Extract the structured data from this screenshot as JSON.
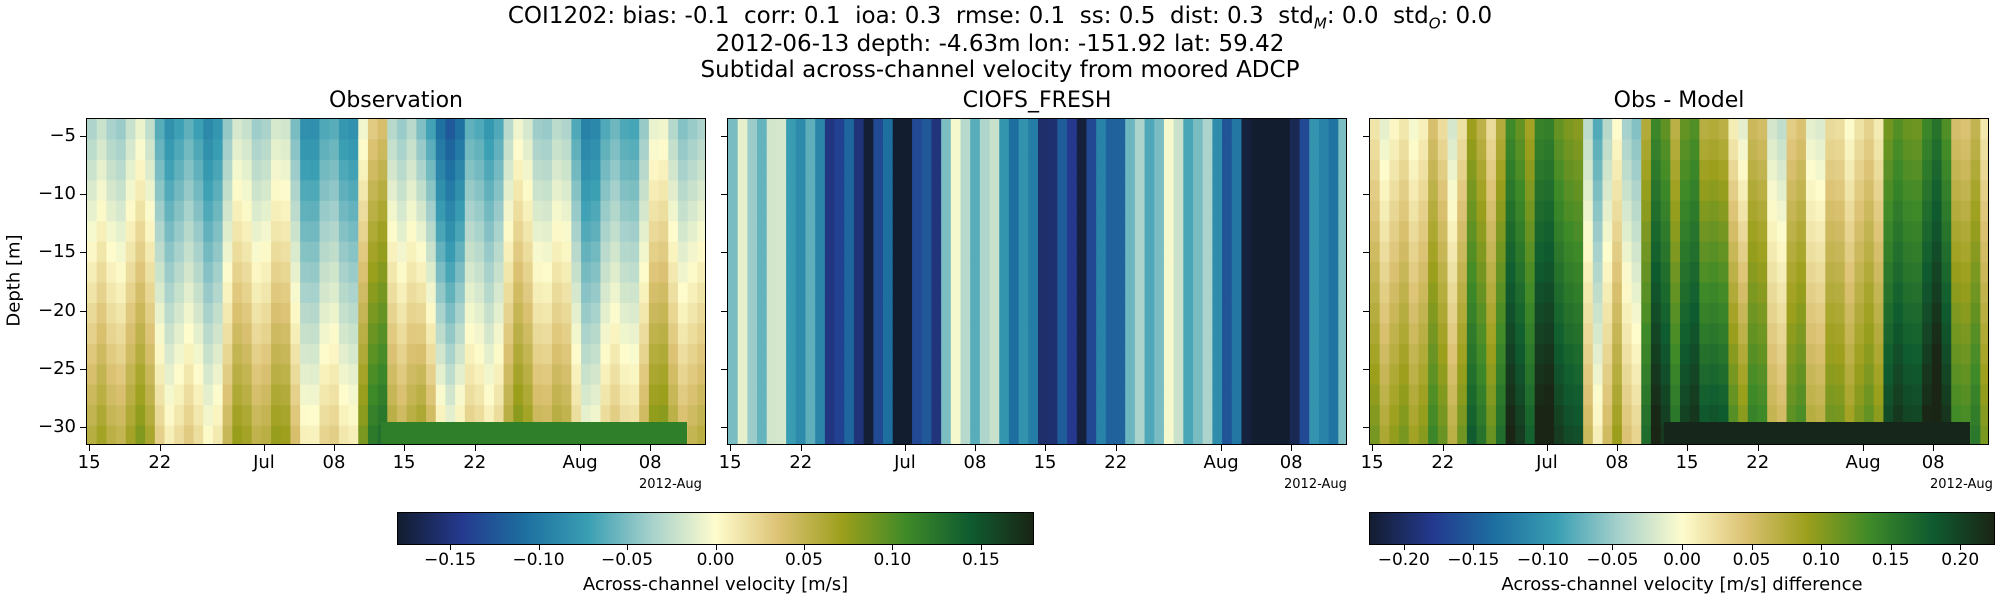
{
  "titles": {
    "line1": "COI1202: bias: -0.1  corr: 0.1  ioa: 0.3  rmse: 0.1  ss: 0.5  dist: 0.3  std",
    "line1_sub_m": "M",
    "line1_mid": ": 0.0  std",
    "line1_sub_o": "O",
    "line1_end": ": 0.0",
    "line2": "2012-06-13 depth: -4.63m lon: -151.92 lat: 59.42",
    "line3": "Subtidal across-channel velocity from moored ADCP"
  },
  "chart_data": [
    {
      "type": "heatmap",
      "title": "Observation",
      "ylabel": "Depth [m]",
      "xlabel": "",
      "x_ticks": [
        "15",
        "22",
        "Jul",
        "08",
        "15",
        "22",
        "Aug",
        "08"
      ],
      "x_offset_label": "2012-Aug",
      "y_ticks": [
        -5,
        -10,
        -15,
        -20,
        -25,
        -30
      ],
      "ylim": [
        -31.5,
        -3.5
      ],
      "x_range": [
        "2012-06-14",
        "2012-08-16"
      ],
      "colormap": "delta",
      "colorbar_index": 0,
      "description_values": {
        "depth_profile": "positive (yellow) near bottom, negative (teal) near surface"
      }
    },
    {
      "type": "heatmap",
      "title": "CIOFS_FRESH",
      "x_ticks": [
        "15",
        "22",
        "Jul",
        "08",
        "15",
        "22",
        "Aug",
        "08"
      ],
      "x_offset_label": "2012-Aug",
      "y_ticks": [
        -5,
        -10,
        -15,
        -20,
        -25,
        -30
      ],
      "ylim": [
        -31.5,
        -3.5
      ],
      "colormap": "delta",
      "colorbar_index": 0
    },
    {
      "type": "heatmap",
      "title": "Obs - Model",
      "x_ticks": [
        "15",
        "22",
        "Jul",
        "08",
        "15",
        "22",
        "Aug",
        "08"
      ],
      "x_offset_label": "2012-Aug",
      "y_ticks": [
        -5,
        -10,
        -15,
        -20,
        -25,
        -30
      ],
      "ylim": [
        -31.5,
        -3.5
      ],
      "colormap": "delta",
      "colorbar_index": 1
    }
  ],
  "colorbars": [
    {
      "label": "Across-channel velocity [m/s]",
      "ticks": [
        "−0.15",
        "−0.10",
        "−0.05",
        "0.00",
        "0.05",
        "0.10",
        "0.15"
      ],
      "tick_values": [
        -0.15,
        -0.1,
        -0.05,
        0.0,
        0.05,
        0.1,
        0.15
      ],
      "range": [
        -0.18,
        0.18
      ]
    },
    {
      "label": "Across-channel velocity [m/s] difference",
      "ticks": [
        "−0.20",
        "−0.15",
        "−0.10",
        "−0.05",
        "0.00",
        "0.05",
        "0.10",
        "0.15",
        "0.20"
      ],
      "tick_values": [
        -0.2,
        -0.15,
        -0.1,
        -0.05,
        0.0,
        0.05,
        0.1,
        0.15,
        0.2
      ],
      "range": [
        -0.225,
        0.225
      ]
    }
  ],
  "colormap_stops": [
    "#131d30",
    "#24398e",
    "#1d6fa0",
    "#3a9fb3",
    "#a7d1cc",
    "#fefccd",
    "#dcc274",
    "#9c9f1c",
    "#3f8a28",
    "#0f5c30",
    "#1a2515"
  ]
}
